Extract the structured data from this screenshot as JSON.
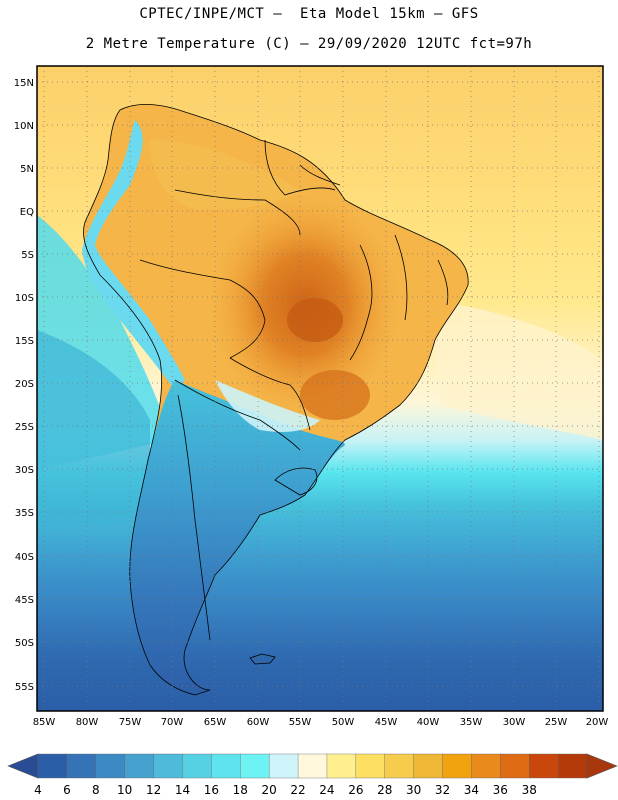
{
  "header": {
    "line1": "CPTEC/INPE/MCT –  Eta Model 15km – GFS",
    "line2": "2 Metre Temperature (C) – 29/09/2020 12UTC fct=97h"
  },
  "map": {
    "lat_labels": [
      "15N",
      "10N",
      "5N",
      "EQ",
      "5S",
      "10S",
      "15S",
      "20S",
      "25S",
      "30S",
      "35S",
      "40S",
      "45S",
      "50S",
      "55S"
    ],
    "lon_labels": [
      "85W",
      "80W",
      "75W",
      "70W",
      "65W",
      "60W",
      "55W",
      "50W",
      "45W",
      "40W",
      "35W",
      "30W",
      "25W",
      "20W"
    ],
    "colors": {
      "ocean_north": "#ffe07a",
      "ocean_mid": "#fff3c8",
      "ocean_cool": "#4ee6f0",
      "ocean_cold": "#3fb6d8",
      "ocean_colder": "#3a8ec8",
      "ocean_coldest": "#2f67ad",
      "land_warm": "#f2a23a",
      "land_hot": "#d9741a",
      "land_mild": "#f7c75a",
      "andes": "#66d7ee",
      "patagonia": "#3f86c4"
    }
  },
  "colorbar": {
    "labels": [
      "4",
      "6",
      "8",
      "10",
      "12",
      "14",
      "16",
      "18",
      "20",
      "22",
      "24",
      "26",
      "28",
      "30",
      "32",
      "34",
      "36",
      "38"
    ],
    "colors": [
      "#2b5ea7",
      "#3573b6",
      "#3d89c3",
      "#45a2cf",
      "#4dbbd9",
      "#56d1e3",
      "#5fe3ec",
      "#6ef3f5",
      "#cff5fb",
      "#fff8dc",
      "#ffef8f",
      "#fde062",
      "#f5cc4b",
      "#eeb736",
      "#f0a20f",
      "#e88a1c",
      "#de6c14",
      "#c9460d",
      "#b53a0a"
    ],
    "under_color": "#2a4c95",
    "over_color": "#a8370d"
  }
}
